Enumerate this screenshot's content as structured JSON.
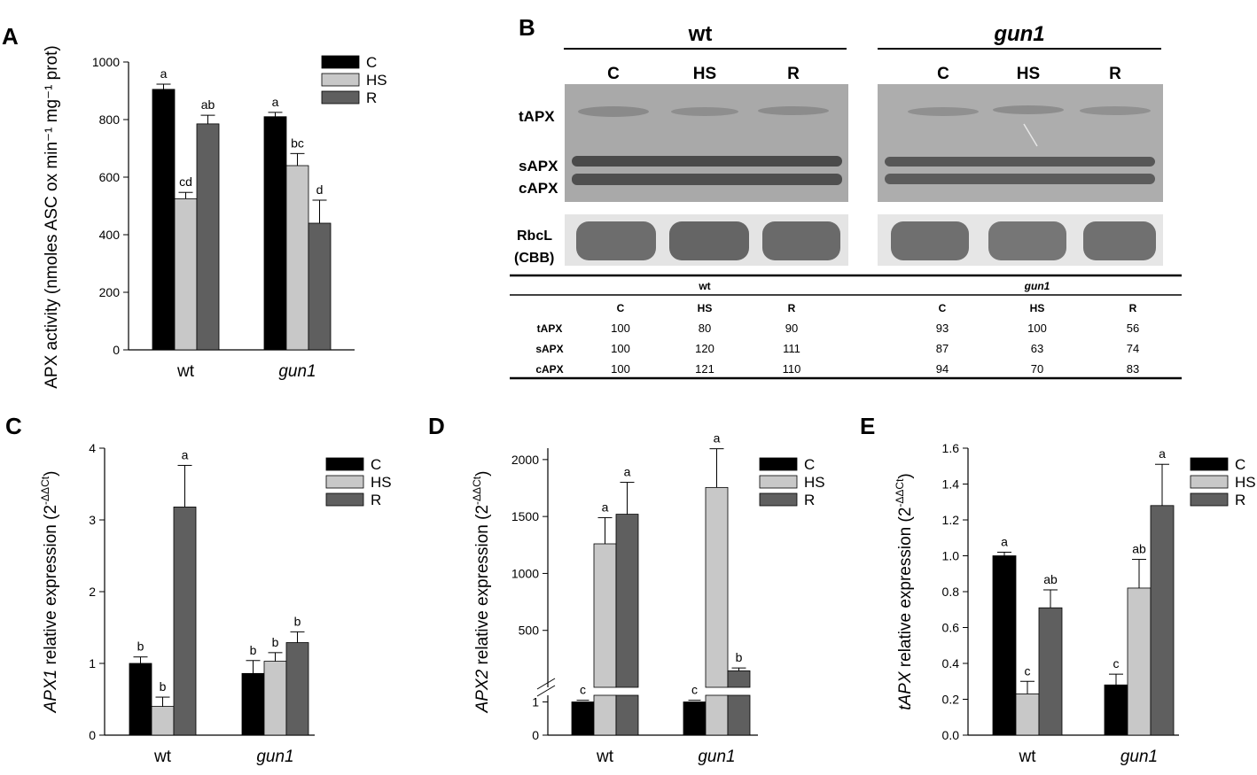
{
  "colors": {
    "C": "#000000",
    "HS": "#c8c8c8",
    "R": "#5f5f5f"
  },
  "panelA": {
    "letter": "A",
    "chart_data": {
      "type": "bar",
      "categories": [
        "wt",
        "gun1"
      ],
      "series": [
        {
          "name": "C",
          "values": [
            905,
            810
          ],
          "errors": [
            18,
            15
          ]
        },
        {
          "name": "HS",
          "values": [
            525,
            640
          ],
          "errors": [
            22,
            42
          ]
        },
        {
          "name": "R",
          "values": [
            785,
            440
          ],
          "errors": [
            30,
            80
          ]
        }
      ],
      "letters": [
        [
          "a",
          "cd",
          "ab"
        ],
        [
          "a",
          "bc",
          "d"
        ]
      ],
      "ylabel": "APX activity (nmoles ASC ox min⁻¹ mg⁻¹ prot)",
      "ylim": [
        0,
        1000
      ],
      "yticks": [
        0,
        200,
        400,
        600,
        800,
        1000
      ],
      "legend": "top-right"
    }
  },
  "panelB": {
    "letter": "B",
    "genotypes": [
      "wt",
      "gun1"
    ],
    "lanes": [
      "C",
      "HS",
      "R"
    ],
    "band_labels": [
      "tAPX",
      "sAPX",
      "cAPX"
    ],
    "loading_label": [
      "RbcL",
      "(CBB)"
    ],
    "table": {
      "rows": [
        {
          "label": "tAPX",
          "values": [
            "100",
            "80",
            "90",
            "93",
            "100",
            "56"
          ]
        },
        {
          "label": "sAPX",
          "values": [
            "100",
            "120",
            "111",
            "87",
            "63",
            "74"
          ]
        },
        {
          "label": "cAPX",
          "values": [
            "100",
            "121",
            "110",
            "94",
            "70",
            "83"
          ]
        }
      ]
    }
  },
  "panelC": {
    "letter": "C",
    "chart_data": {
      "type": "bar",
      "categories": [
        "wt",
        "gun1"
      ],
      "series": [
        {
          "name": "C",
          "values": [
            1.0,
            0.86
          ],
          "errors": [
            0.09,
            0.18
          ]
        },
        {
          "name": "HS",
          "values": [
            0.4,
            1.03
          ],
          "errors": [
            0.13,
            0.12
          ]
        },
        {
          "name": "R",
          "values": [
            3.18,
            1.29
          ],
          "errors": [
            0.58,
            0.15
          ]
        }
      ],
      "letters": [
        [
          "b",
          "b",
          "a"
        ],
        [
          "b",
          "b",
          "b"
        ]
      ],
      "ylabel_gene": "APX1",
      "ylabel_rest": " relative expression (2",
      "ylabel_sup": "-ΔΔCt",
      "ylabel_end": ")",
      "ylim": [
        0,
        4
      ],
      "yticks": [
        0,
        1,
        2,
        3,
        4
      ],
      "legend": "top-right"
    }
  },
  "panelD": {
    "letter": "D",
    "chart_data": {
      "type": "bar",
      "categories": [
        "wt",
        "gun1"
      ],
      "series": [
        {
          "name": "C",
          "values": [
            1.0,
            1.0
          ],
          "errors": [
            0.05,
            0.05
          ]
        },
        {
          "name": "HS",
          "values": [
            1260,
            1755
          ],
          "errors": [
            230,
            340
          ]
        },
        {
          "name": "R",
          "values": [
            1520,
            145
          ],
          "errors": [
            280,
            25
          ]
        }
      ],
      "letters": [
        [
          "c",
          "a",
          "a"
        ],
        [
          "c",
          "a",
          "b"
        ]
      ],
      "ylabel_gene": "APX2",
      "ylabel_rest": " relative expression (2",
      "ylabel_sup": "-ΔΔCt",
      "ylabel_end": ")",
      "broken_axis": {
        "lower": [
          0,
          1.2
        ],
        "upper": [
          0,
          2100
        ]
      },
      "yticks_lower": [
        "0",
        "1"
      ],
      "yticks_upper": [
        "500",
        "1000",
        "1500",
        "2000"
      ],
      "legend": "top-right"
    }
  },
  "panelE": {
    "letter": "E",
    "chart_data": {
      "type": "bar",
      "categories": [
        "wt",
        "gun1"
      ],
      "series": [
        {
          "name": "C",
          "values": [
            1.0,
            0.28
          ],
          "errors": [
            0.02,
            0.06
          ]
        },
        {
          "name": "HS",
          "values": [
            0.23,
            0.82
          ],
          "errors": [
            0.07,
            0.16
          ]
        },
        {
          "name": "R",
          "values": [
            0.71,
            1.28
          ],
          "errors": [
            0.1,
            0.23
          ]
        }
      ],
      "letters": [
        [
          "a",
          "c",
          "ab"
        ],
        [
          "c",
          "ab",
          "a"
        ]
      ],
      "ylabel_gene": "tAPX",
      "ylabel_rest": " relative expression (2",
      "ylabel_sup": "-ΔΔCt",
      "ylabel_end": ")",
      "ylim": [
        0,
        1.6
      ],
      "yticks": [
        "0.0",
        "0.2",
        "0.4",
        "0.6",
        "0.8",
        "1.0",
        "1.2",
        "1.4",
        "1.6"
      ],
      "legend": "top-right"
    }
  }
}
